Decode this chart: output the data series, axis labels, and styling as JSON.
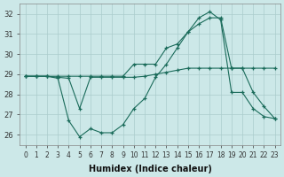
{
  "xlabel": "Humidex (Indice chaleur)",
  "background_color": "#cce8e8",
  "grid_color": "#aacccc",
  "line_color": "#1a6b5a",
  "xlim": [
    -0.5,
    23.5
  ],
  "ylim": [
    25.5,
    32.5
  ],
  "yticks": [
    26,
    27,
    28,
    29,
    30,
    31,
    32
  ],
  "xticks": [
    0,
    1,
    2,
    3,
    4,
    5,
    6,
    7,
    8,
    9,
    10,
    11,
    12,
    13,
    14,
    15,
    16,
    17,
    18,
    19,
    20,
    21,
    22,
    23
  ],
  "series1_x": [
    0,
    1,
    2,
    3,
    4,
    5,
    6,
    7,
    8,
    9,
    10,
    11,
    12,
    13,
    14,
    15,
    16,
    17,
    18,
    19,
    20,
    21,
    22,
    23
  ],
  "series1_y": [
    28.9,
    28.9,
    28.9,
    28.9,
    28.9,
    28.9,
    28.9,
    28.9,
    28.9,
    28.9,
    29.5,
    29.5,
    29.5,
    30.3,
    30.5,
    31.1,
    31.5,
    31.8,
    31.8,
    29.3,
    29.3,
    28.1,
    27.4,
    26.8
  ],
  "series2_x": [
    0,
    1,
    2,
    3,
    4,
    5,
    6,
    7,
    8,
    9,
    10,
    11,
    12,
    13,
    14,
    15,
    16,
    17,
    18,
    19,
    20,
    21,
    22,
    23
  ],
  "series2_y": [
    28.9,
    28.9,
    28.9,
    28.85,
    28.8,
    27.3,
    28.85,
    28.85,
    28.85,
    28.85,
    28.85,
    28.9,
    29.0,
    29.1,
    29.2,
    29.3,
    29.3,
    29.3,
    29.3,
    29.3,
    29.3,
    29.3,
    29.3,
    29.3
  ],
  "series3_x": [
    0,
    1,
    2,
    3,
    4,
    5,
    6,
    7,
    8,
    9,
    10,
    11,
    12,
    13,
    14,
    15,
    16,
    17,
    18,
    19,
    20,
    21,
    22,
    23
  ],
  "series3_y": [
    28.9,
    28.9,
    28.9,
    28.8,
    26.7,
    25.9,
    26.3,
    26.1,
    26.1,
    26.5,
    27.3,
    27.8,
    28.85,
    29.5,
    30.3,
    31.1,
    31.8,
    32.1,
    31.7,
    28.1,
    28.1,
    27.3,
    26.9,
    26.8
  ]
}
